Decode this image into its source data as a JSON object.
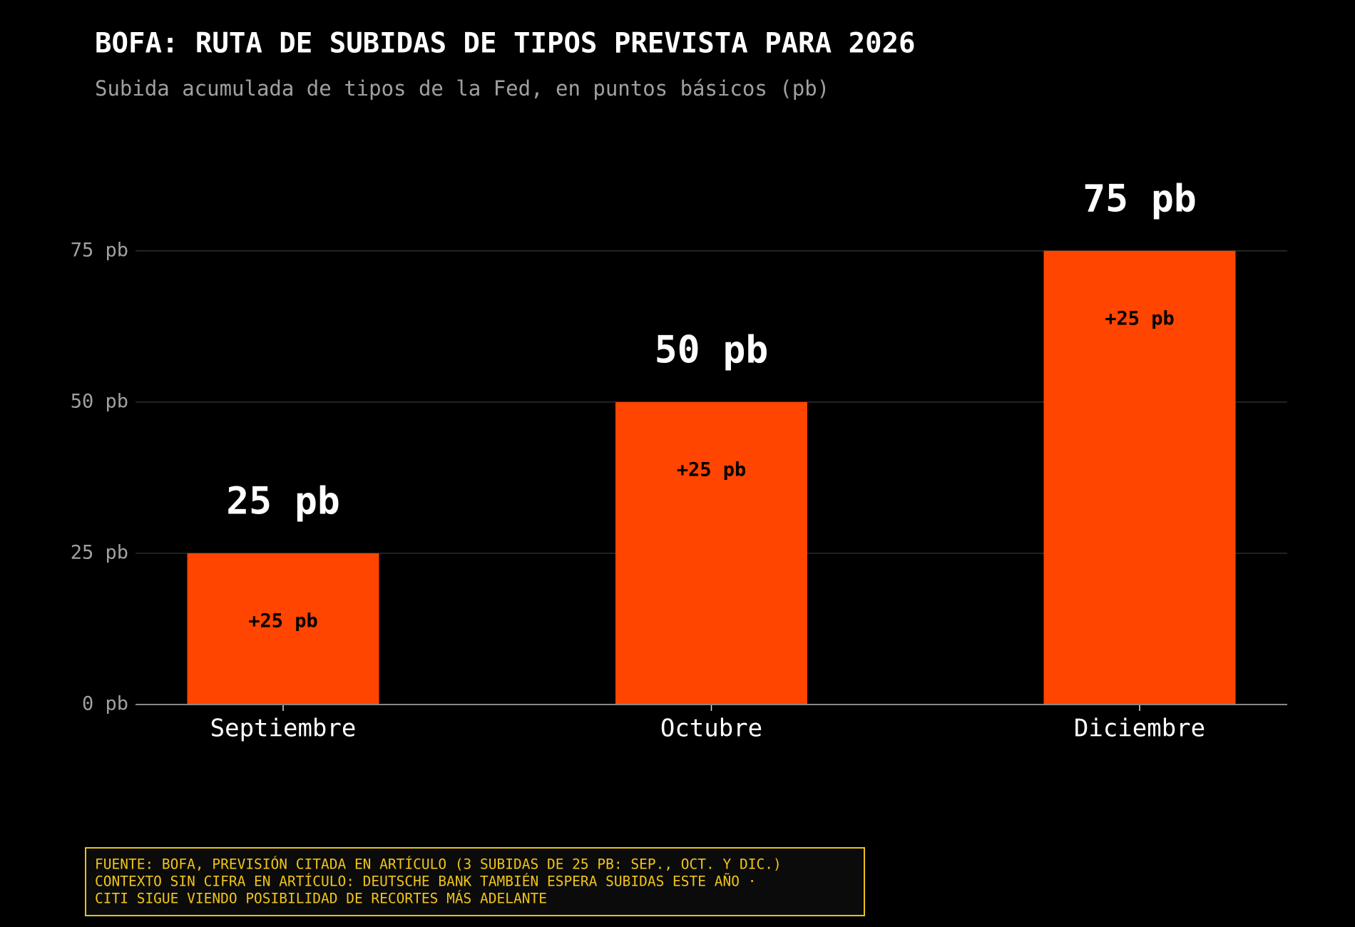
{
  "chart_data": {
    "type": "bar",
    "title": "BOFA: RUTA DE SUBIDAS DE TIPOS PREVISTA PARA 2026",
    "subtitle": "Subida acumulada de tipos de la Fed, en puntos básicos (pb)",
    "categories": [
      "Septiembre",
      "Octubre",
      "Diciembre"
    ],
    "values": [
      25,
      50,
      75
    ],
    "value_labels": [
      "25 pb",
      "50 pb",
      "75 pb"
    ],
    "increments": [
      25,
      25,
      25
    ],
    "increment_labels": [
      "+25 pb",
      "+25 pb",
      "+25 pb"
    ],
    "color": "#ff4500",
    "ylim": [
      0,
      90
    ],
    "yticks": [
      {
        "value": 0,
        "label": "0 pb"
      },
      {
        "value": 25,
        "label": "25 pb"
      },
      {
        "value": 50,
        "label": "50 pb"
      },
      {
        "value": 75,
        "label": "75 pb"
      }
    ],
    "grid": true,
    "notes": [
      "FUENTE: BOFA, PREVISIÓN CITADA EN ARTÍCULO (3 SUBIDAS DE 25 PB: SEP., OCT. Y DIC.)",
      "CONTEXTO SIN CIFRA EN ARTÍCULO: DEUTSCHE BANK TAMBIÉN ESPERA SUBIDAS ESTE AÑO ·",
      "CITI SIGUE VIENDO POSIBILIDAD DE RECORTES MÁS ADELANTE"
    ]
  }
}
